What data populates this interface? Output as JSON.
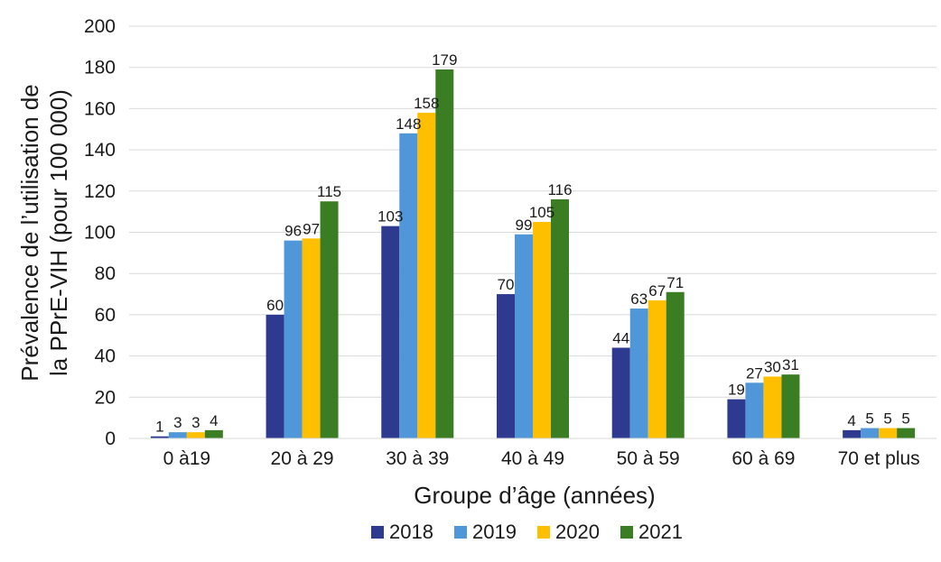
{
  "chart_data": {
    "type": "bar",
    "title": "",
    "xlabel": "Groupe d’âge (années)",
    "ylabel_line1": "Prévalence de l’utilisation de",
    "ylabel_line2": "la PPrE-VIH (pour 100 000)",
    "ylim": [
      0,
      200
    ],
    "yticks": [
      0,
      20,
      40,
      60,
      80,
      100,
      120,
      140,
      160,
      180,
      200
    ],
    "grid": true,
    "legend_position": "bottom",
    "categories": [
      "0 à19",
      "20 à 29",
      "30 à 39",
      "40 à 49",
      "50 à 59",
      "60 à 69",
      "70 et plus"
    ],
    "series": [
      {
        "name": "2018",
        "color": "#2e3a8f",
        "values": [
          1,
          60,
          103,
          70,
          44,
          19,
          4
        ]
      },
      {
        "name": "2019",
        "color": "#4f97d8",
        "values": [
          3,
          96,
          148,
          99,
          63,
          27,
          5
        ]
      },
      {
        "name": "2020",
        "color": "#fdbf00",
        "values": [
          3,
          97,
          158,
          105,
          67,
          30,
          5
        ]
      },
      {
        "name": "2021",
        "color": "#3b7d23",
        "values": [
          4,
          115,
          179,
          116,
          71,
          31,
          5
        ]
      }
    ]
  }
}
